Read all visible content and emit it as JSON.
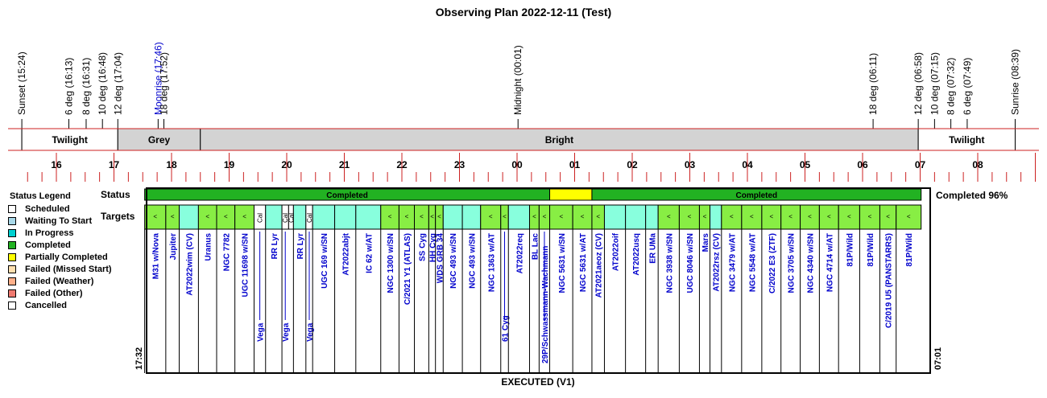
{
  "title": "Observing Plan 2022-12-11 (Test)",
  "status_label": "Status",
  "targets_label": "Targets",
  "completion_label": "Completed 96%",
  "footer": "EXECUTED (V1)",
  "start_time": "17:32",
  "end_time": "07:01",
  "legend": {
    "title": "Status Legend",
    "items": [
      {
        "label": "Scheduled",
        "color": "#ffffff"
      },
      {
        "label": "Waiting To Start",
        "color": "#a8d8e8"
      },
      {
        "label": "In Progress",
        "color": "#00d0d0"
      },
      {
        "label": "Completed",
        "color": "#22b222"
      },
      {
        "label": "Partially Completed",
        "color": "#ffff00"
      },
      {
        "label": "Failed (Missed Start)",
        "color": "#ffe0b0"
      },
      {
        "label": "Failed (Weather)",
        "color": "#ffb08a"
      },
      {
        "label": "Failed (Other)",
        "color": "#f07a70"
      },
      {
        "label": "Cancelled",
        "color": "#ffffff"
      }
    ]
  },
  "chart_data": {
    "type": "timeline",
    "x_unit": "hours since 15:00 local",
    "hour_ticks": [
      {
        "h": 1,
        "label": "16"
      },
      {
        "h": 2,
        "label": "17"
      },
      {
        "h": 3,
        "label": "18"
      },
      {
        "h": 4,
        "label": "19"
      },
      {
        "h": 5,
        "label": "20"
      },
      {
        "h": 6,
        "label": "21"
      },
      {
        "h": 7,
        "label": "22"
      },
      {
        "h": 8,
        "label": "23"
      },
      {
        "h": 9,
        "label": "00"
      },
      {
        "h": 10,
        "label": "01"
      },
      {
        "h": 11,
        "label": "02"
      },
      {
        "h": 12,
        "label": "03"
      },
      {
        "h": 13,
        "label": "04"
      },
      {
        "h": 14,
        "label": "05"
      },
      {
        "h": 15,
        "label": "06"
      },
      {
        "h": 16,
        "label": "07"
      },
      {
        "h": 17,
        "label": "08"
      }
    ],
    "events": [
      {
        "h": 0.4,
        "label": "Sunset (15:24)",
        "color": "#000000"
      },
      {
        "h": 1.217,
        "label": "6 deg (16:13)",
        "color": "#000000"
      },
      {
        "h": 1.517,
        "label": "8 deg (16:31)",
        "color": "#000000"
      },
      {
        "h": 1.8,
        "label": "10 deg (16:48)",
        "color": "#000000"
      },
      {
        "h": 2.067,
        "label": "12 deg (17:04)",
        "color": "#000000"
      },
      {
        "h": 2.767,
        "label": "Moonrise (17:46)",
        "color": "#0000cc"
      },
      {
        "h": 2.867,
        "label": "18 deg (17:52)",
        "color": "#000000"
      },
      {
        "h": 9.017,
        "label": "Midnight (00:01)",
        "color": "#000000"
      },
      {
        "h": 15.183,
        "label": "18 deg (06:11)",
        "color": "#000000"
      },
      {
        "h": 15.967,
        "label": "12 deg (06:58)",
        "color": "#000000"
      },
      {
        "h": 16.25,
        "label": "10 deg (07:15)",
        "color": "#000000"
      },
      {
        "h": 16.533,
        "label": "8 deg (07:32)",
        "color": "#000000"
      },
      {
        "h": 16.817,
        "label": "6 deg (07:49)",
        "color": "#000000"
      },
      {
        "h": 17.65,
        "label": "Sunrise (08:39)",
        "color": "#000000"
      }
    ],
    "sky_periods": [
      {
        "label": "Twilight",
        "start": 0.4,
        "end": 2.067,
        "color": "#ffffff"
      },
      {
        "label": "Grey",
        "start": 2.067,
        "end": 3.5,
        "color": "#d3d3d3"
      },
      {
        "label": "Bright",
        "start": 3.5,
        "end": 15.967,
        "color": "#d3d3d3"
      },
      {
        "label": "Twilight",
        "start": 15.967,
        "end": 17.65,
        "color": "#ffffff"
      }
    ],
    "status_segments": [
      {
        "start": 2.533,
        "end": 9.567,
        "label": "Completed",
        "color": "#22b222"
      },
      {
        "start": 9.567,
        "end": 10.3,
        "label": "",
        "color": "#ffff00"
      },
      {
        "start": 10.3,
        "end": 16.017,
        "label": "Completed",
        "color": "#22b222"
      }
    ],
    "targets": [
      {
        "name": "M31 w/Nova",
        "start": 2.533,
        "end": 2.9,
        "color": "#88ee44",
        "mark": "<"
      },
      {
        "name": "Jupiter",
        "start": 2.9,
        "end": 3.133,
        "color": "#88ee44",
        "mark": "<"
      },
      {
        "name": "AT2022wim (CV)",
        "start": 3.133,
        "end": 3.467,
        "color": "#88ffdd",
        "mark": ""
      },
      {
        "name": "Uranus",
        "start": 3.467,
        "end": 3.783,
        "color": "#88ee44",
        "mark": "<"
      },
      {
        "name": "NGC 7782",
        "start": 3.783,
        "end": 4.1,
        "color": "#88ee44",
        "mark": "<"
      },
      {
        "name": "UGC 11698 w/SN",
        "start": 4.1,
        "end": 4.433,
        "color": "#88ee44",
        "mark": "<"
      },
      {
        "name": "Vega",
        "start": 4.433,
        "end": 4.633,
        "color": "#ffffff",
        "mark": "Cal",
        "low": true
      },
      {
        "name": "RR Lyr",
        "start": 4.633,
        "end": 4.917,
        "color": "#88ffdd",
        "mark": ""
      },
      {
        "name": "Vega",
        "start": 4.917,
        "end": 5.033,
        "color": "#ffffff",
        "mark": "Cal",
        "low": true
      },
      {
        "name": "",
        "start": 5.033,
        "end": 5.117,
        "color": "#ffffff",
        "mark": "Cal"
      },
      {
        "name": "RR Lyr",
        "start": 5.117,
        "end": 5.333,
        "color": "#88ffdd",
        "mark": ""
      },
      {
        "name": "Vega",
        "start": 5.333,
        "end": 5.45,
        "color": "#ffffff",
        "mark": "Cal",
        "low": true
      },
      {
        "name": "UGC 169 w/SN",
        "start": 5.45,
        "end": 5.833,
        "color": "#88ffdd",
        "mark": ""
      },
      {
        "name": "AT2022abjt",
        "start": 5.833,
        "end": 6.2,
        "color": "#88ffdd",
        "mark": ""
      },
      {
        "name": "IC 62 w/AT",
        "start": 6.2,
        "end": 6.633,
        "color": "#88ffdd",
        "mark": ""
      },
      {
        "name": "NGC 1300 w/SN",
        "start": 6.633,
        "end": 6.95,
        "color": "#88ee44",
        "mark": "<"
      },
      {
        "name": "C/2021 Y1 (ATLAS)",
        "start": 6.95,
        "end": 7.217,
        "color": "#88ee44",
        "mark": "<"
      },
      {
        "name": "SS Cyg",
        "start": 7.217,
        "end": 7.467,
        "color": "#88ee44",
        "mark": "<"
      },
      {
        "name": "HH Cyg",
        "start": 7.467,
        "end": 7.583,
        "color": "#88ee44",
        "mark": "<"
      },
      {
        "name": "WDS GRB 34",
        "start": 7.583,
        "end": 7.717,
        "color": "#88ee44",
        "mark": "<"
      },
      {
        "name": "NGC 493 w/SN",
        "start": 7.717,
        "end": 8.05,
        "color": "#88ffdd",
        "mark": ""
      },
      {
        "name": "NGC 493 w/SN",
        "start": 8.05,
        "end": 8.367,
        "color": "#88ffdd",
        "mark": ""
      },
      {
        "name": "NGC 1363 w/AT",
        "start": 8.367,
        "end": 8.717,
        "color": "#88ee44",
        "mark": "<"
      },
      {
        "name": "61 Cyg",
        "start": 8.717,
        "end": 8.85,
        "color": "#88ee44",
        "mark": "<",
        "low": true
      },
      {
        "name": "AT2022req",
        "start": 8.85,
        "end": 9.217,
        "color": "#88ffdd",
        "mark": ""
      },
      {
        "name": "BL Lac",
        "start": 9.217,
        "end": 9.383,
        "color": "#88ee44",
        "mark": "<"
      },
      {
        "name": "29P/Schwassmann-Wachmann",
        "start": 9.383,
        "end": 9.567,
        "color": "#88ee44",
        "mark": "<",
        "low": true
      },
      {
        "name": "NGC 5631 w/SN",
        "start": 9.567,
        "end": 9.967,
        "color": "#88ee44",
        "mark": "<"
      },
      {
        "name": "NGC 5631 w/AT",
        "start": 9.967,
        "end": 10.3,
        "color": "#88ee44",
        "mark": "<"
      },
      {
        "name": "AT2021aeoz (CV)",
        "start": 10.3,
        "end": 10.517,
        "color": "#88ee44",
        "mark": "<"
      },
      {
        "name": "AT2022oif",
        "start": 10.517,
        "end": 10.883,
        "color": "#88ffdd",
        "mark": ""
      },
      {
        "name": "AT2022usq",
        "start": 10.883,
        "end": 11.233,
        "color": "#88ffdd",
        "mark": ""
      },
      {
        "name": "ER UMa",
        "start": 11.233,
        "end": 11.45,
        "color": "#88ffdd",
        "mark": ""
      },
      {
        "name": "NGC 3938 w/SN",
        "start": 11.45,
        "end": 11.817,
        "color": "#88ee44",
        "mark": "<"
      },
      {
        "name": "UGC 8046 w/SN",
        "start": 11.817,
        "end": 12.167,
        "color": "#88ee44",
        "mark": "<"
      },
      {
        "name": "Mars",
        "start": 12.167,
        "end": 12.35,
        "color": "#88ee44",
        "mark": "<"
      },
      {
        "name": "AT2022rsz (CV)",
        "start": 12.35,
        "end": 12.55,
        "color": "#88ffdd",
        "mark": ""
      },
      {
        "name": "NGC 3479 w/AT",
        "start": 12.55,
        "end": 12.9,
        "color": "#88ee44",
        "mark": "<"
      },
      {
        "name": "NGC 5548 w/AT",
        "start": 12.9,
        "end": 13.25,
        "color": "#88ee44",
        "mark": "<"
      },
      {
        "name": "C/2022 E3 (ZTF)",
        "start": 13.25,
        "end": 13.583,
        "color": "#88ee44",
        "mark": "<"
      },
      {
        "name": "NGC 3705 w/SN",
        "start": 13.583,
        "end": 13.917,
        "color": "#88ee44",
        "mark": "<"
      },
      {
        "name": "NGC 4340 w/SN",
        "start": 13.917,
        "end": 14.25,
        "color": "#88ee44",
        "mark": "<"
      },
      {
        "name": "NGC 4714 w/AT",
        "start": 14.25,
        "end": 14.583,
        "color": "#88ee44",
        "mark": "<"
      },
      {
        "name": "81P/Wild",
        "start": 14.583,
        "end": 14.95,
        "color": "#88ee44",
        "mark": "<"
      },
      {
        "name": "81P/Wild",
        "start": 14.95,
        "end": 15.3,
        "color": "#88ee44",
        "mark": "<"
      },
      {
        "name": "C/2019 U5 (PANSTARRS)",
        "start": 15.3,
        "end": 15.583,
        "color": "#88ee44",
        "mark": "<"
      },
      {
        "name": "81P/Wild",
        "start": 15.583,
        "end": 16.017,
        "color": "#88ee44",
        "mark": "<"
      }
    ]
  }
}
